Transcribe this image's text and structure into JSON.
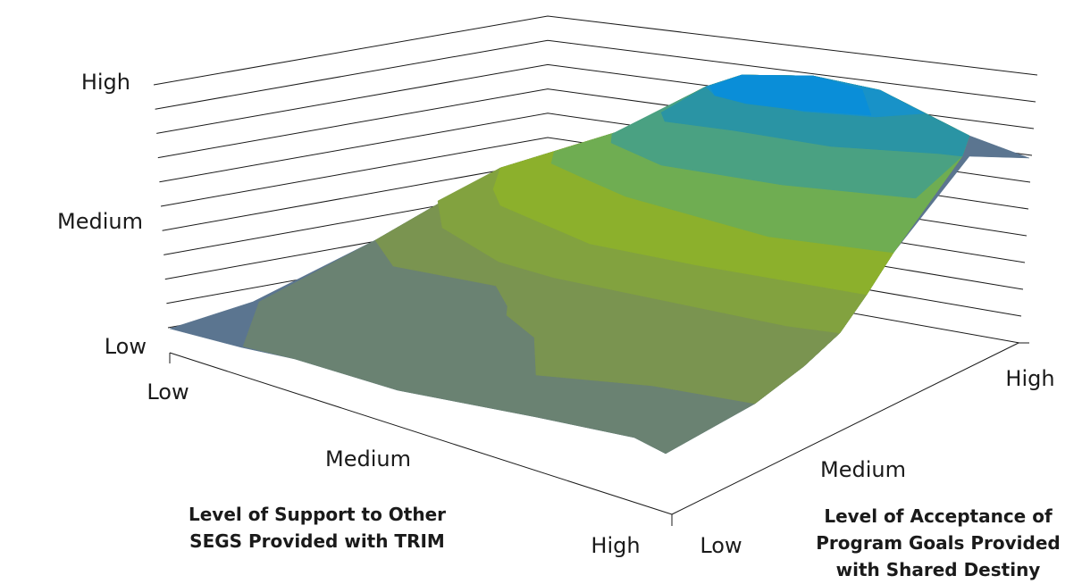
{
  "chart_data": {
    "type": "surface",
    "z_axis": {
      "tick_labels": [
        "Low",
        "Medium",
        "High"
      ]
    },
    "x_axis": {
      "title_lines": [
        "Level of Support to Other",
        "SEGS Provided with TRIM"
      ],
      "tick_labels": [
        "Low",
        "Medium",
        "High"
      ]
    },
    "y_axis": {
      "title_lines": [
        "Level of Acceptance of",
        "Program Goals Provided",
        "with Shared Destiny"
      ],
      "tick_labels": [
        "Low",
        "Medium",
        "High"
      ]
    },
    "grid": true,
    "z_levels": 10,
    "bands": [
      {
        "level": 0,
        "color": "#5b7590"
      },
      {
        "level": 1,
        "color": "#6a8272"
      },
      {
        "level": 2,
        "color": "#7a9450"
      },
      {
        "level": 3,
        "color": "#82a23f"
      },
      {
        "level": 4,
        "color": "#8cb02c"
      },
      {
        "level": 5,
        "color": "#6fad52"
      },
      {
        "level": 6,
        "color": "#4aa182"
      },
      {
        "level": 7,
        "color": "#2a94a4"
      },
      {
        "level": 8,
        "color": "#1892c8"
      },
      {
        "level": 9,
        "color": "#0a8ed8"
      }
    ]
  }
}
